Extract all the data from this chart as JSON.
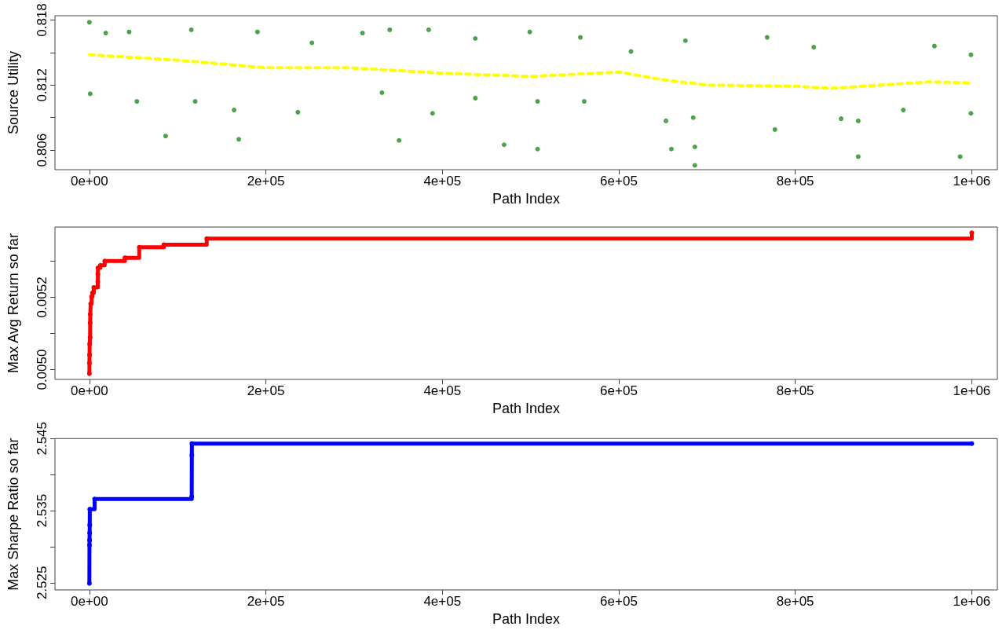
{
  "chart_data": [
    {
      "type": "scatter",
      "marker": "circle",
      "xlabel": "Path Index",
      "ylabel": "Source Utility",
      "xlim": [
        -39000,
        1029000
      ],
      "ylim": [
        0.8042,
        0.8184
      ],
      "xticks": [
        {
          "value": 0,
          "label": "0e+00"
        },
        {
          "value": 200000,
          "label": "2e+05"
        },
        {
          "value": 400000,
          "label": "4e+05"
        },
        {
          "value": 600000,
          "label": "6e+05"
        },
        {
          "value": 800000,
          "label": "8e+05"
        },
        {
          "value": 1000000,
          "label": "1e+06"
        }
      ],
      "yticks": [
        0.806,
        {
          "value": 0.809,
          "label": null
        },
        0.812,
        {
          "value": 0.815,
          "label": null
        },
        0.818
      ],
      "series": [
        {
          "color": "#228b22",
          "x": [
            0,
            18500,
            45000,
            115500,
            190500,
            252200,
            309500,
            340400,
            384500,
            437400,
            499100,
            556400,
            613800,
            675500,
            768100,
            821000,
            957700,
            999100,
            900,
            53800,
            119900,
            164000,
            236300,
            331600,
            388900,
            437400,
            507900,
            560800,
            653400,
            684300,
            776900,
            851900,
            871300,
            922400,
            999100,
            86400,
            169300,
            351000,
            470000,
            507900,
            659600,
            686100,
            686100,
            871300,
            986800
          ],
          "values": [
            0.8178,
            0.8168,
            0.8169,
            0.8171,
            0.8169,
            0.8159,
            0.8168,
            0.8171,
            0.8171,
            0.8163,
            0.8169,
            0.8164,
            0.8151,
            0.8161,
            0.8164,
            0.8155,
            0.8156,
            0.8148,
            0.8112,
            0.8105,
            0.8105,
            0.8097,
            0.8095,
            0.8113,
            0.8094,
            0.8108,
            0.8105,
            0.8105,
            0.8087,
            0.809,
            0.8079,
            0.8089,
            0.8087,
            0.8097,
            0.8094,
            0.8073,
            0.807,
            0.8069,
            0.8065,
            0.8061,
            0.8061,
            0.8063,
            0.8046,
            0.8054,
            0.8054
          ]
        },
        {
          "type": "line",
          "marker": "none",
          "line_style": "dashed",
          "color": "#ffff00",
          "x": [
            0,
            100000,
            200000,
            294000,
            400000,
            500000,
            550000,
            600000,
            649000,
            700000,
            800000,
            840000,
            952000,
            1000000
          ],
          "values": [
            0.8148,
            0.8143,
            0.8136,
            0.8136,
            0.8131,
            0.8128,
            0.813,
            0.8132,
            0.8125,
            0.812,
            0.8119,
            0.8117,
            0.8123,
            0.8122
          ]
        }
      ]
    },
    {
      "type": "step",
      "marker": "circle",
      "xlabel": "Path Index",
      "ylabel": "Max Avg Return so far",
      "xlim": [
        -39000,
        1029000
      ],
      "ylim": [
        0.004973,
        0.005394
      ],
      "xticks": [
        {
          "value": 0,
          "label": "0e+00"
        },
        {
          "value": 200000,
          "label": "2e+05"
        },
        {
          "value": 400000,
          "label": "4e+05"
        },
        {
          "value": 600000,
          "label": "6e+05"
        },
        {
          "value": 800000,
          "label": "8e+05"
        },
        {
          "value": 1000000,
          "label": "1e+06"
        }
      ],
      "yticks": [
        {
          "value": 0.005,
          "label": "0.0050"
        },
        {
          "value": 0.0051,
          "label": null
        },
        {
          "value": 0.0052,
          "label": "0.0052"
        },
        {
          "value": 0.0053,
          "label": null
        }
      ],
      "series": [
        {
          "color": "#ff0000",
          "x": [
            0,
            100,
            200,
            300,
            800,
            900,
            1000,
            1500,
            2500,
            3500,
            5000,
            9500,
            9600,
            9700,
            12400,
            17400,
            40300,
            56500,
            84400,
            133000,
            1000000
          ],
          "values": [
            0.004989,
            0.005018,
            0.005041,
            0.005071,
            0.005089,
            0.005129,
            0.005153,
            0.005182,
            0.005202,
            0.005212,
            0.005227,
            0.005243,
            0.005264,
            0.005281,
            0.005288,
            0.0053,
            0.005309,
            0.005338,
            0.005345,
            0.005362,
            0.005378
          ]
        }
      ]
    },
    {
      "type": "step",
      "marker": "circle",
      "xlabel": "Path Index",
      "ylabel": "Max Sharpe Ratio so far",
      "xlim": [
        -39000,
        1029000
      ],
      "ylim": [
        2.524,
        2.545
      ],
      "xticks": [
        {
          "value": 0,
          "label": "0e+00"
        },
        {
          "value": 200000,
          "label": "2e+05"
        },
        {
          "value": 400000,
          "label": "4e+05"
        },
        {
          "value": 600000,
          "label": "6e+05"
        },
        {
          "value": 800000,
          "label": "8e+05"
        },
        {
          "value": 1000000,
          "label": "1e+06"
        }
      ],
      "yticks": [
        2.525,
        {
          "value": 2.53,
          "label": null
        },
        2.535,
        {
          "value": 2.54,
          "label": null
        },
        2.545
      ],
      "series": [
        {
          "color": "#0000ff",
          "x": [
            0,
            100,
            200,
            300,
            400,
            500,
            5900,
            116000,
            116100,
            116200,
            1000000
          ],
          "values": [
            2.5249,
            2.5302,
            2.5309,
            2.5319,
            2.533,
            2.5352,
            2.5366,
            2.5369,
            2.5427,
            2.5443,
            2.5443
          ]
        }
      ]
    }
  ]
}
